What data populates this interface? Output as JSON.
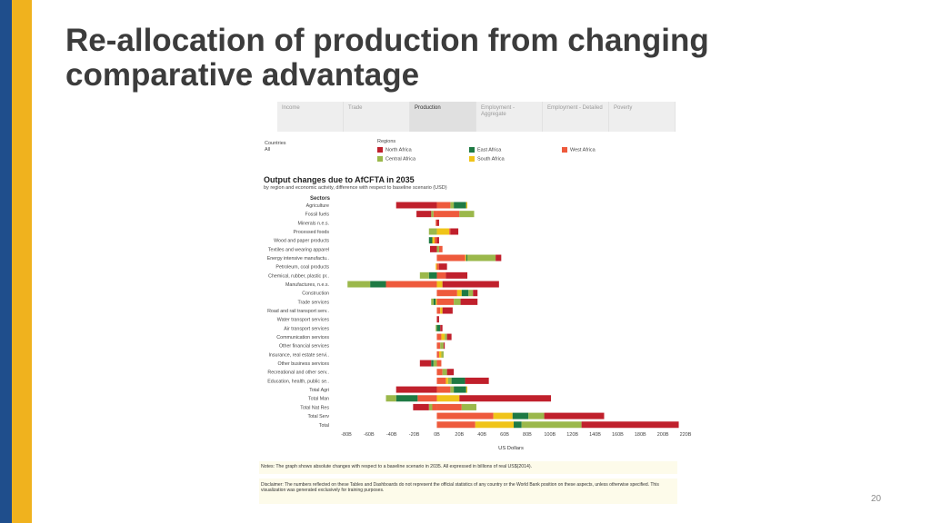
{
  "slide": {
    "title": "Re-allocation of production from changing comparative advantage",
    "page_number": "20"
  },
  "tabs": [
    {
      "label": "Income",
      "active": false
    },
    {
      "label": "Trade",
      "active": false
    },
    {
      "label": "Production",
      "active": true
    },
    {
      "label": "Employment - Aggregate",
      "active": false
    },
    {
      "label": "Employment - Detailed",
      "active": false
    },
    {
      "label": "Poverty",
      "active": false
    }
  ],
  "filters": {
    "countries_label": "Countries",
    "countries_value": "All",
    "regions_label": "Regions"
  },
  "legend": [
    {
      "name": "North Africa",
      "color": "#c0202c"
    },
    {
      "name": "East Africa",
      "color": "#1e7a44"
    },
    {
      "name": "West Africa",
      "color": "#ee5a3c"
    },
    {
      "name": "Central Africa",
      "color": "#9bb84b"
    },
    {
      "name": "South Africa",
      "color": "#f0c419"
    }
  ],
  "notes": "Notes: The graph shows absolute changes with respect to a baseline scenario in 2035. All expressed in billions of real US$(2014).",
  "disclaimer": "Disclaimer: The numbers reflected on these Tables and Dashboards do not represent the official statistics of any country or the World Bank position on these aspects, unless otherwise specified. This visualization was generated exclusively for training purposes.",
  "chart_data": {
    "type": "bar",
    "orientation": "horizontal",
    "stacked": true,
    "title": "Output changes due to AfCFTA in 2035",
    "subtitle": "by region and economic activity, difference with respect to baseline scenario (USD)",
    "ylabel": "Sectors",
    "xlabel": "US Dollars",
    "xlim": [
      -80,
      220
    ],
    "ticks": [
      {
        "value": -80,
        "label": "-80B"
      },
      {
        "value": -60,
        "label": "-60B"
      },
      {
        "value": -40,
        "label": "-40B"
      },
      {
        "value": -20,
        "label": "-20B"
      },
      {
        "value": 0,
        "label": "0B"
      },
      {
        "value": 20,
        "label": "20B"
      },
      {
        "value": 40,
        "label": "40B"
      },
      {
        "value": 60,
        "label": "60B"
      },
      {
        "value": 80,
        "label": "80B"
      },
      {
        "value": 100,
        "label": "100B"
      },
      {
        "value": 120,
        "label": "120B"
      },
      {
        "value": 140,
        "label": "140B"
      },
      {
        "value": 160,
        "label": "160B"
      },
      {
        "value": 180,
        "label": "180B"
      },
      {
        "value": 200,
        "label": "200B"
      },
      {
        "value": 220,
        "label": "220B"
      }
    ],
    "series_order": [
      "West Africa",
      "South Africa",
      "Central Africa",
      "East Africa",
      "North Africa"
    ],
    "categories": [
      {
        "label": "Agriculture",
        "neg": [
          [
            "North Africa",
            -36
          ]
        ],
        "pos": [
          [
            "West Africa",
            12
          ],
          [
            "Central Africa",
            3
          ],
          [
            "East Africa",
            11
          ],
          [
            "South Africa",
            1
          ]
        ]
      },
      {
        "label": "Fossil fuels",
        "neg": [
          [
            "West Africa",
            -3
          ],
          [
            "Central Africa",
            -2
          ],
          [
            "North Africa",
            -13
          ]
        ],
        "pos": [
          [
            "West Africa",
            20
          ],
          [
            "Central Africa",
            13
          ]
        ]
      },
      {
        "label": "Minerals n.e.s.",
        "neg": [
          [
            "West Africa",
            -1
          ]
        ],
        "pos": [
          [
            "North Africa",
            2
          ]
        ]
      },
      {
        "label": "Processed foods",
        "neg": [
          [
            "Central Africa",
            -7
          ]
        ],
        "pos": [
          [
            "South Africa",
            11
          ],
          [
            "West Africa",
            1
          ],
          [
            "North Africa",
            7
          ]
        ]
      },
      {
        "label": "Wood and paper products",
        "neg": [
          [
            "West Africa",
            -2
          ],
          [
            "South Africa",
            -2
          ],
          [
            "East Africa",
            -3
          ]
        ],
        "pos": [
          [
            "North Africa",
            2
          ]
        ]
      },
      {
        "label": "Textiles and wearing apparel",
        "neg": [
          [
            "North Africa",
            -6
          ]
        ],
        "pos": [
          [
            "Central Africa",
            2
          ],
          [
            "West Africa",
            3
          ]
        ]
      },
      {
        "label": "Energy intensive manufactu..",
        "neg": [],
        "pos": [
          [
            "West Africa",
            25
          ],
          [
            "South Africa",
            1
          ],
          [
            "East Africa",
            1
          ],
          [
            "Central Africa",
            25
          ],
          [
            "North Africa",
            5
          ]
        ]
      },
      {
        "label": "Petroleum, coal products",
        "neg": [
          [
            "South Africa",
            -1
          ]
        ],
        "pos": [
          [
            "West Africa",
            2
          ],
          [
            "North Africa",
            7
          ]
        ]
      },
      {
        "label": "Chemical, rubber, plastic pr..",
        "neg": [
          [
            "East Africa",
            -7
          ],
          [
            "Central Africa",
            -8
          ]
        ],
        "pos": [
          [
            "West Africa",
            8
          ],
          [
            "North Africa",
            19
          ]
        ]
      },
      {
        "label": "Manufactures, n.e.s.",
        "neg": [
          [
            "West Africa",
            -45
          ],
          [
            "East Africa",
            -14
          ],
          [
            "Central Africa",
            -20
          ]
        ],
        "pos": [
          [
            "South Africa",
            5
          ],
          [
            "North Africa",
            50
          ]
        ]
      },
      {
        "label": "Construction",
        "neg": [],
        "pos": [
          [
            "West Africa",
            18
          ],
          [
            "South Africa",
            4
          ],
          [
            "East Africa",
            6
          ],
          [
            "Central Africa",
            4
          ],
          [
            "North Africa",
            4
          ]
        ]
      },
      {
        "label": "Trade services",
        "neg": [
          [
            "South Africa",
            -1
          ],
          [
            "East Africa",
            -2
          ],
          [
            "Central Africa",
            -2
          ]
        ],
        "pos": [
          [
            "West Africa",
            15
          ],
          [
            "Central Africa",
            6
          ],
          [
            "North Africa",
            15
          ]
        ]
      },
      {
        "label": "Road and rail transport serv..",
        "neg": [],
        "pos": [
          [
            "West Africa",
            3
          ],
          [
            "South Africa",
            2
          ],
          [
            "North Africa",
            9
          ]
        ]
      },
      {
        "label": "Water transport services",
        "neg": [],
        "pos": [
          [
            "North Africa",
            2
          ]
        ]
      },
      {
        "label": "Air transport services",
        "neg": [
          [
            "Central Africa",
            -1
          ]
        ],
        "pos": [
          [
            "East Africa",
            3
          ],
          [
            "North Africa",
            2
          ]
        ]
      },
      {
        "label": "Communication services",
        "neg": [],
        "pos": [
          [
            "West Africa",
            4
          ],
          [
            "South Africa",
            3
          ],
          [
            "Central Africa",
            2
          ],
          [
            "North Africa",
            4
          ]
        ]
      },
      {
        "label": "Other financial services",
        "neg": [],
        "pos": [
          [
            "West Africa",
            3
          ],
          [
            "Central Africa",
            3
          ],
          [
            "North Africa",
            1
          ]
        ]
      },
      {
        "label": "Insurance, real estate servi..",
        "neg": [],
        "pos": [
          [
            "West Africa",
            2
          ],
          [
            "South Africa",
            2
          ],
          [
            "Central Africa",
            2
          ]
        ]
      },
      {
        "label": "Other business services",
        "neg": [
          [
            "Central Africa",
            -3
          ],
          [
            "East Africa",
            -2
          ],
          [
            "North Africa",
            -10
          ]
        ],
        "pos": [
          [
            "West Africa",
            4
          ]
        ]
      },
      {
        "label": "Recreational and other serv..",
        "neg": [],
        "pos": [
          [
            "West Africa",
            5
          ],
          [
            "Central Africa",
            4
          ],
          [
            "North Africa",
            6
          ]
        ]
      },
      {
        "label": "Education, health, public se..",
        "neg": [],
        "pos": [
          [
            "West Africa",
            8
          ],
          [
            "South Africa",
            2
          ],
          [
            "Central Africa",
            3
          ],
          [
            "East Africa",
            12
          ],
          [
            "North Africa",
            21
          ]
        ]
      },
      {
        "label": "Total Agri",
        "neg": [
          [
            "North Africa",
            -36
          ]
        ],
        "pos": [
          [
            "West Africa",
            12
          ],
          [
            "Central Africa",
            3
          ],
          [
            "East Africa",
            11
          ],
          [
            "South Africa",
            1
          ]
        ]
      },
      {
        "label": "Total Man",
        "neg": [
          [
            "West Africa",
            -17
          ],
          [
            "East Africa",
            -19
          ],
          [
            "Central Africa",
            -9
          ]
        ],
        "pos": [
          [
            "South Africa",
            20
          ],
          [
            "North Africa",
            81
          ]
        ]
      },
      {
        "label": "Total Nat Res",
        "neg": [
          [
            "West Africa",
            -4
          ],
          [
            "Central Africa",
            -3
          ],
          [
            "North Africa",
            -14
          ]
        ],
        "pos": [
          [
            "West Africa",
            22
          ],
          [
            "Central Africa",
            13
          ]
        ]
      },
      {
        "label": "Total Serv",
        "neg": [],
        "pos": [
          [
            "West Africa",
            50
          ],
          [
            "South Africa",
            17
          ],
          [
            "East Africa",
            14
          ],
          [
            "Central Africa",
            14
          ],
          [
            "North Africa",
            53
          ]
        ]
      },
      {
        "label": "Total",
        "neg": [],
        "pos": [
          [
            "West Africa",
            34
          ],
          [
            "South Africa",
            34
          ],
          [
            "East Africa",
            7
          ],
          [
            "Central Africa",
            53
          ],
          [
            "North Africa",
            86
          ]
        ]
      }
    ]
  }
}
